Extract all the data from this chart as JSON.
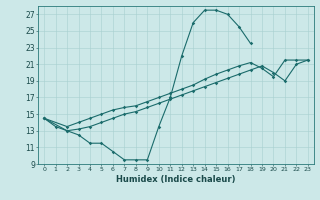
{
  "xlabel": "Humidex (Indice chaleur)",
  "ylabel": "",
  "xlim": [
    -0.5,
    23.5
  ],
  "ylim": [
    9,
    28
  ],
  "xticks": [
    0,
    1,
    2,
    3,
    4,
    5,
    6,
    7,
    8,
    9,
    10,
    11,
    12,
    13,
    14,
    15,
    16,
    17,
    18,
    19,
    20,
    21,
    22,
    23
  ],
  "yticks": [
    9,
    11,
    13,
    15,
    17,
    19,
    21,
    23,
    25,
    27
  ],
  "bg_color": "#cce8e8",
  "line_color": "#1a6b6b",
  "line1_x": [
    0,
    1,
    2,
    3,
    4,
    5,
    6,
    7,
    8,
    9,
    10,
    11,
    12,
    13,
    14,
    15,
    16,
    17,
    18
  ],
  "line1_y": [
    14.5,
    13.5,
    13.0,
    12.5,
    11.5,
    11.5,
    10.5,
    9.5,
    9.5,
    9.5,
    13.5,
    17.0,
    22.0,
    26.0,
    27.5,
    27.5,
    27.0,
    25.5,
    23.5
  ],
  "line2_x": [
    0,
    2,
    3,
    4,
    5,
    6,
    7,
    8,
    9,
    10,
    11,
    12,
    13,
    14,
    15,
    16,
    17,
    18,
    19,
    20,
    21,
    22,
    23
  ],
  "line2_y": [
    14.5,
    13.5,
    14.0,
    14.5,
    15.0,
    15.5,
    15.8,
    16.0,
    16.5,
    17.0,
    17.5,
    18.0,
    18.5,
    19.2,
    19.8,
    20.3,
    20.8,
    21.2,
    20.5,
    19.5,
    21.5,
    21.5,
    21.5
  ],
  "line3_x": [
    0,
    2,
    3,
    4,
    5,
    6,
    7,
    8,
    9,
    10,
    11,
    12,
    13,
    14,
    15,
    16,
    17,
    18,
    19,
    20,
    21,
    22,
    23
  ],
  "line3_y": [
    14.5,
    13.0,
    13.2,
    13.5,
    14.0,
    14.5,
    15.0,
    15.3,
    15.8,
    16.3,
    16.8,
    17.3,
    17.8,
    18.3,
    18.8,
    19.3,
    19.8,
    20.3,
    20.8,
    20.0,
    19.0,
    21.0,
    21.5
  ]
}
